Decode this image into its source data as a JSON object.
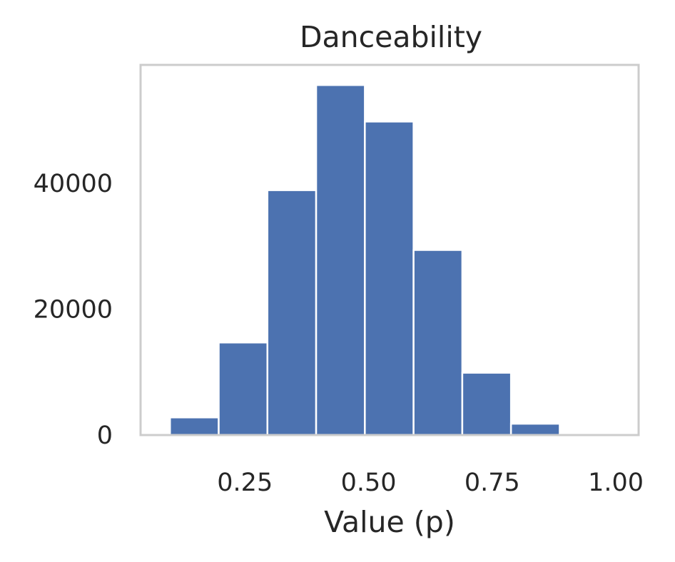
{
  "chart_data": {
    "type": "bar",
    "title": "Danceability",
    "xlabel": "Value (p)",
    "ylabel": "",
    "x_ticks": [
      "0.25",
      "0.50",
      "0.75",
      "1.00"
    ],
    "x_tick_values": [
      0.25,
      0.5,
      0.75,
      1.0
    ],
    "y_ticks": [
      "0",
      "20000",
      "40000"
    ],
    "y_tick_values": [
      0,
      20000,
      40000
    ],
    "xlim": [
      0.039,
      1.046
    ],
    "ylim": [
      0,
      58800
    ],
    "bin_edges": [
      0.0,
      0.0985,
      0.197,
      0.2955,
      0.394,
      0.4925,
      0.591,
      0.6895,
      0.788,
      0.8865,
      0.985
    ],
    "values": [
      10,
      2800,
      14700,
      38900,
      55600,
      49800,
      29400,
      9900,
      1800,
      100
    ],
    "grid": false,
    "bar_color": "#4c72b0",
    "frame_color": "#cccccc"
  }
}
